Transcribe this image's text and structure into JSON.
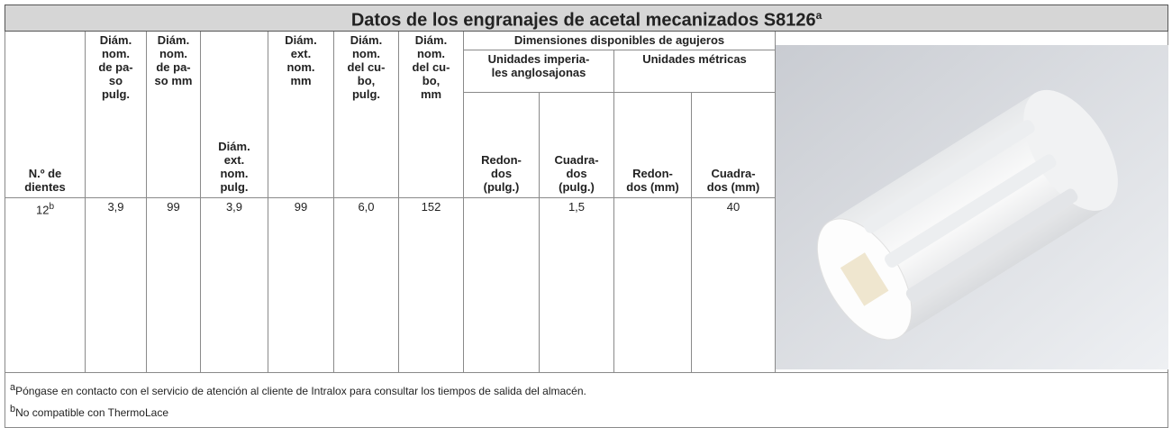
{
  "table": {
    "title": "Datos de los engranajes de acetal mecanizados S8126",
    "title_note": "a",
    "header": {
      "columns": [
        "N.º de\ndientes",
        "Diám.\nnom.\nde pa-\nso\npulg.",
        "Diám.\nnom.\nde pa-\nso mm",
        "Diám.\next.\nnom.\npulg.",
        "Diám.\next.\nnom.\nmm",
        "Diám.\nnom.\ndel cu-\nbo,\npulg.",
        "Diám.\nnom.\ndel cu-\nbo,\nmm"
      ],
      "group": "Dimensiones disponibles de agujeros",
      "subgroups": [
        "Unidades imperia-\nles anglosajonas",
        "Unidades métricas"
      ],
      "subcolumns": [
        "Redon-\ndos\n(pulg.)",
        "Cuadra-\ndos\n(pulg.)",
        "Redon-\ndos (mm)",
        "Cuadra-\ndos (mm)"
      ]
    },
    "rows": [
      {
        "teeth": "12",
        "teeth_note": "b",
        "values": [
          "3,9",
          "99",
          "3,9",
          "99",
          "6,0",
          "152",
          null,
          "1,5",
          null,
          "40"
        ]
      }
    ]
  },
  "footnotes": [
    {
      "mark": "a",
      "text": "Póngase en contacto con el servicio de atención al cliente de Intralox para consultar los tiempos de salida del almacén."
    },
    {
      "mark": "b",
      "text": "No compatible con ThermoLace"
    }
  ]
}
